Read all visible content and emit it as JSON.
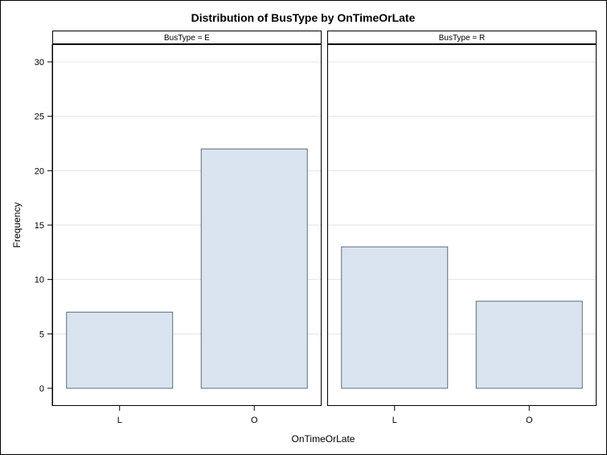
{
  "chart_data": {
    "type": "bar",
    "title": "Distribution of BusType by OnTimeOrLate",
    "xlabel": "OnTimeOrLate",
    "ylabel": "Frequency",
    "ylim": [
      0,
      32
    ],
    "yticks": [
      0,
      5,
      10,
      15,
      20,
      25,
      30
    ],
    "grid": true,
    "colors": {
      "bar_fill": "#dae4f1",
      "bar_stroke": "#5f6b7a",
      "grid": "#e3e3e3"
    },
    "panels": [
      {
        "label": "BusType = E",
        "categories": [
          "L",
          "O"
        ],
        "values": [
          7,
          22
        ]
      },
      {
        "label": "BusType = R",
        "categories": [
          "L",
          "O"
        ],
        "values": [
          13,
          8
        ]
      }
    ]
  }
}
